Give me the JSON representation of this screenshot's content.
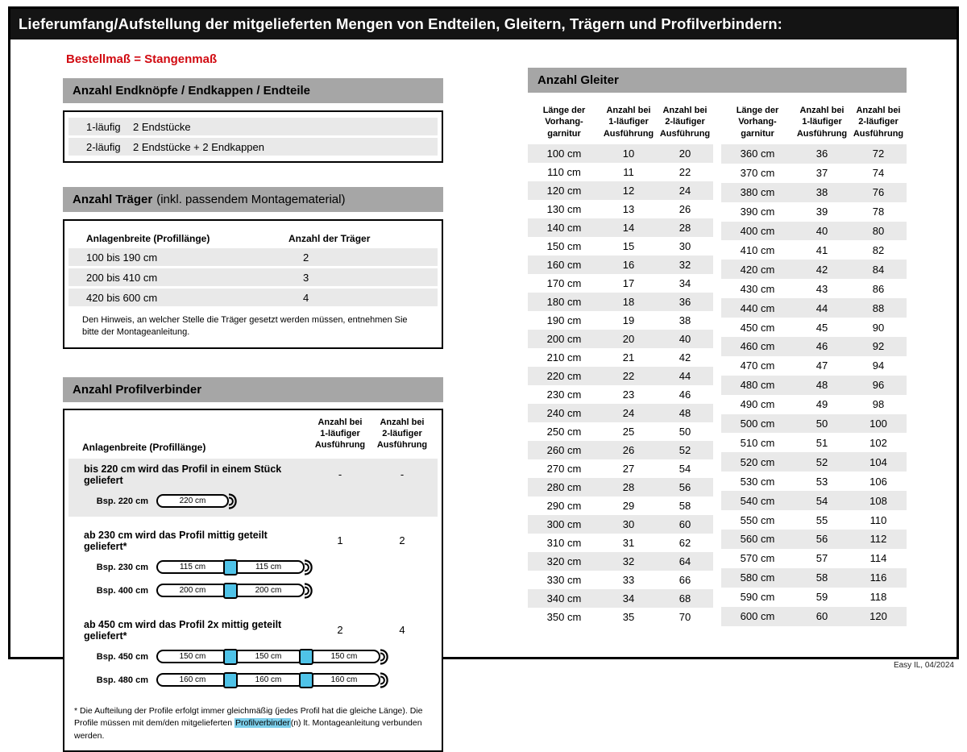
{
  "page": {
    "title": "Lieferumfang/Aufstellung der mitgelieferten Mengen von Endteilen, Gleitern, Trägern und Profilverbindern:",
    "subtitle": "Bestellmaß = Stangenmaß",
    "footer": "Easy IL, 04/2024"
  },
  "colors": {
    "title_bar": "#141414",
    "section_header_gray": "#a6a6a6",
    "row_gray": "#e9e9e9",
    "accent_red": "#d10a11",
    "connector_cyan": "#4fc3e8",
    "highlight_cyan": "#7cceea"
  },
  "endteile": {
    "title": "Anzahl Endknöpfe / Endkappen / Endteile",
    "rows": [
      [
        "1-läufig",
        "2 Endstücke"
      ],
      [
        "2-läufig",
        "2 Endstücke + 2 Endkappen"
      ]
    ]
  },
  "traeger": {
    "title": "Anzahl Träger",
    "title_suffix": "(inkl. passendem Montagematerial)",
    "col_headers": [
      "Anlagenbreite (Profillänge)",
      "Anzahl der Träger"
    ],
    "rows": [
      [
        "100 bis 190 cm",
        "2"
      ],
      [
        "200 bis 410 cm",
        "3"
      ],
      [
        "420 bis 600 cm",
        "4"
      ]
    ],
    "note": "Den Hinweis, an welcher Stelle die Träger gesetzt werden müssen, entnehmen Sie bitte der Montageanleitung."
  },
  "profilverbinder": {
    "title": "Anzahl Profilverbinder",
    "col_headers": [
      "Anlagenbreite (Profillänge)",
      "Anzahl bei\n1-läufiger\nAusführung",
      "Anzahl bei\n2-läufiger\nAusführung"
    ],
    "groups": [
      {
        "description": "bis 220 cm wird das Profil in einem Stück geliefert",
        "count1": "-",
        "count2": "-",
        "examples": [
          {
            "label": "Bsp. 220 cm",
            "segments": [
              "220 cm"
            ]
          }
        ]
      },
      {
        "description": "ab 230 cm wird das Profil mittig geteilt geliefert*",
        "count1": "1",
        "count2": "2",
        "examples": [
          {
            "label": "Bsp. 230 cm",
            "segments": [
              "115 cm",
              "115 cm"
            ]
          },
          {
            "label": "Bsp. 400 cm",
            "segments": [
              "200 cm",
              "200 cm"
            ]
          }
        ]
      },
      {
        "description": "ab 450 cm wird das Profil 2x mittig geteilt geliefert*",
        "count1": "2",
        "count2": "4",
        "examples": [
          {
            "label": "Bsp. 450 cm",
            "segments": [
              "150 cm",
              "150 cm",
              "150 cm"
            ]
          },
          {
            "label": "Bsp. 480 cm",
            "segments": [
              "160 cm",
              "160 cm",
              "160 cm"
            ]
          }
        ]
      }
    ],
    "footnote": {
      "before": "* Die Aufteilung der Profile erfolgt immer gleichmäßig (jedes Profil hat die gleiche Länge). Die Profile müssen mit dem/den mitgelieferten ",
      "highlight": "Profilverbinder",
      "after": "(n) lt. Montageanleitung verbunden werden."
    }
  },
  "gleiter": {
    "title": "Anzahl Gleiter",
    "col_headers": [
      "Länge der\nVorhang-\ngarnitur",
      "Anzahl bei\n1-läufiger\nAusführung",
      "Anzahl bei\n2-läufiger\nAusführung"
    ],
    "table_left": [
      [
        "100 cm",
        10,
        20
      ],
      [
        "110 cm",
        11,
        22
      ],
      [
        "120 cm",
        12,
        24
      ],
      [
        "130 cm",
        13,
        26
      ],
      [
        "140 cm",
        14,
        28
      ],
      [
        "150 cm",
        15,
        30
      ],
      [
        "160 cm",
        16,
        32
      ],
      [
        "170 cm",
        17,
        34
      ],
      [
        "180 cm",
        18,
        36
      ],
      [
        "190 cm",
        19,
        38
      ],
      [
        "200 cm",
        20,
        40
      ],
      [
        "210 cm",
        21,
        42
      ],
      [
        "220 cm",
        22,
        44
      ],
      [
        "230 cm",
        23,
        46
      ],
      [
        "240 cm",
        24,
        48
      ],
      [
        "250 cm",
        25,
        50
      ],
      [
        "260 cm",
        26,
        52
      ],
      [
        "270 cm",
        27,
        54
      ],
      [
        "280 cm",
        28,
        56
      ],
      [
        "290 cm",
        29,
        58
      ],
      [
        "300 cm",
        30,
        60
      ],
      [
        "310 cm",
        31,
        62
      ],
      [
        "320 cm",
        32,
        64
      ],
      [
        "330 cm",
        33,
        66
      ],
      [
        "340 cm",
        34,
        68
      ],
      [
        "350 cm",
        35,
        70
      ]
    ],
    "table_right": [
      [
        "360 cm",
        36,
        72
      ],
      [
        "370 cm",
        37,
        74
      ],
      [
        "380 cm",
        38,
        76
      ],
      [
        "390 cm",
        39,
        78
      ],
      [
        "400 cm",
        40,
        80
      ],
      [
        "410 cm",
        41,
        82
      ],
      [
        "420 cm",
        42,
        84
      ],
      [
        "430 cm",
        43,
        86
      ],
      [
        "440 cm",
        44,
        88
      ],
      [
        "450 cm",
        45,
        90
      ],
      [
        "460 cm",
        46,
        92
      ],
      [
        "470 cm",
        47,
        94
      ],
      [
        "480 cm",
        48,
        96
      ],
      [
        "490 cm",
        49,
        98
      ],
      [
        "500 cm",
        50,
        100
      ],
      [
        "510 cm",
        51,
        102
      ],
      [
        "520 cm",
        52,
        104
      ],
      [
        "530 cm",
        53,
        106
      ],
      [
        "540 cm",
        54,
        108
      ],
      [
        "550 cm",
        55,
        110
      ],
      [
        "560 cm",
        56,
        112
      ],
      [
        "570 cm",
        57,
        114
      ],
      [
        "580 cm",
        58,
        116
      ],
      [
        "590 cm",
        59,
        118
      ],
      [
        "600 cm",
        60,
        120
      ]
    ]
  }
}
